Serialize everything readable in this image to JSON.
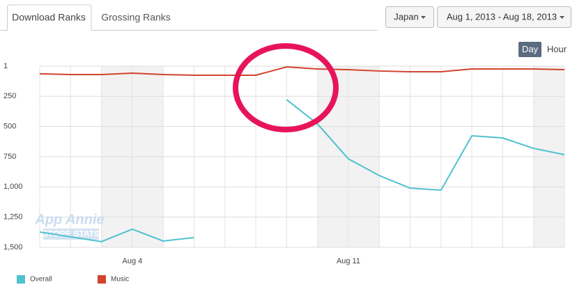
{
  "tabs": [
    "Download Ranks",
    "Grossing Ranks"
  ],
  "filters": {
    "country": "Japan",
    "date_range": "Aug 1, 2013 - Aug 18, 2013"
  },
  "granularity": [
    "Day",
    "Hour"
  ],
  "watermark": [
    "App Annie",
    "STORE STATS"
  ],
  "chart_data": {
    "type": "line",
    "categories": [
      null,
      null,
      null,
      "Aug 4",
      null,
      null,
      null,
      null,
      null,
      null,
      "Aug 11",
      null,
      null,
      null,
      null,
      null,
      null,
      null
    ],
    "series": [
      {
        "name": "Overall",
        "color": "#4fc1cf",
        "values": [
          1373,
          1413,
          1453,
          1350,
          1448,
          1419,
          null,
          null,
          278,
          479,
          768,
          906,
          1010,
          1027,
          577,
          595,
          681,
          733
        ]
      },
      {
        "name": "Music",
        "color": "#d2432e",
        "values": [
          64,
          70,
          70,
          59,
          70,
          76,
          76,
          76,
          7,
          24,
          30,
          41,
          47,
          47,
          24,
          24,
          24,
          30
        ]
      }
    ],
    "ylim": [
      1,
      1500
    ],
    "y_inverted": true,
    "yticks": [
      1,
      250,
      500,
      750,
      {
        "value": 1000,
        "label": "1,000"
      },
      {
        "value": 1250,
        "label": "1,250"
      },
      {
        "value": 1500,
        "label": "1,500"
      }
    ],
    "grid": true,
    "legend": "bottom-left"
  }
}
